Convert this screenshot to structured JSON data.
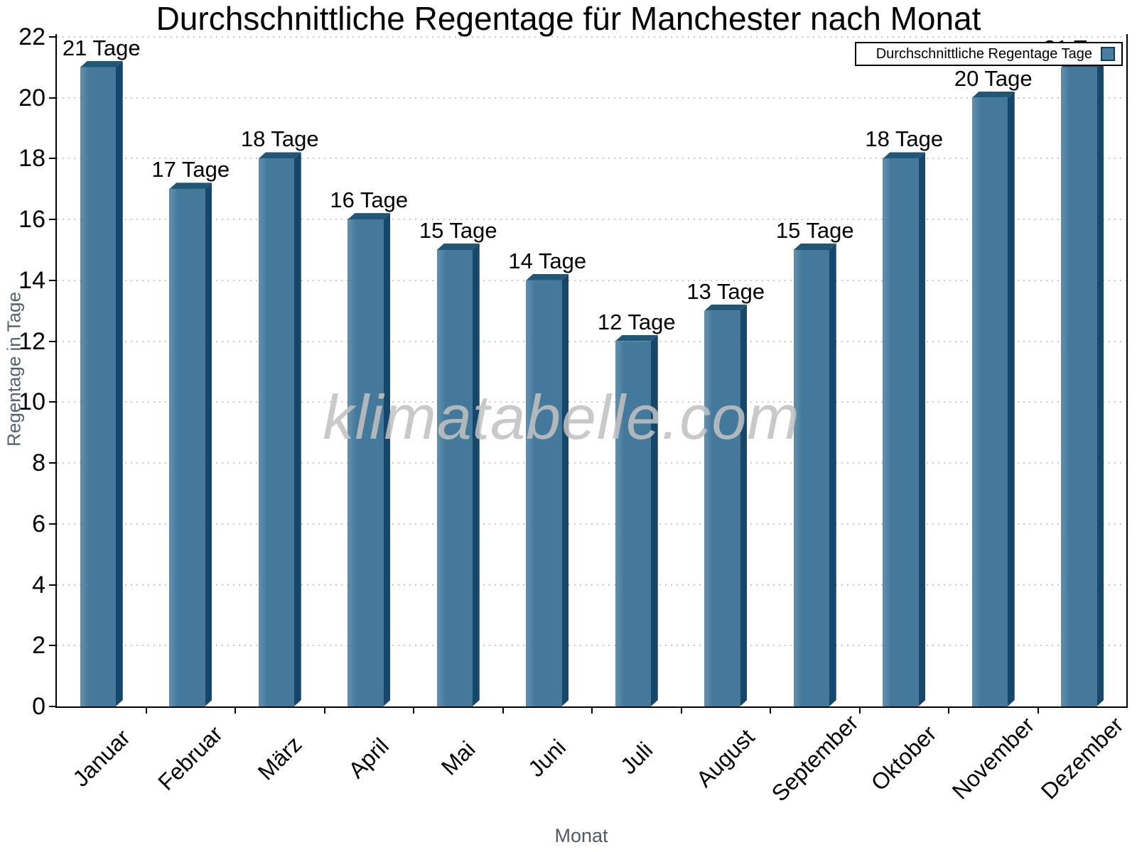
{
  "chart_data": {
    "type": "bar",
    "title": "Durchschnittliche Regentage für Manchester nach Monat",
    "xlabel": "Monat",
    "ylabel": "Regentage in Tage",
    "categories": [
      "Januar",
      "Februar",
      "März",
      "April",
      "Mai",
      "Juni",
      "Juli",
      "August",
      "September",
      "Oktober",
      "November",
      "Dezember"
    ],
    "values": [
      21,
      17,
      18,
      16,
      15,
      14,
      12,
      13,
      15,
      18,
      20,
      21
    ],
    "value_label_suffix": " Tage",
    "ylim": [
      0,
      22
    ],
    "ytick_step": 2,
    "grid": "dotted-horizontal",
    "legend": {
      "label": "Durchschnittliche Regentage Tage",
      "position": "top-right"
    },
    "watermark": "klimatabelle.com",
    "colors": {
      "bar_front": "#45799c",
      "bar_side": "#15476a",
      "bar_top": "#215677",
      "axis": "#000000",
      "grid_dot": "#c6c6c6",
      "axis_title_text": "#55626e"
    }
  }
}
